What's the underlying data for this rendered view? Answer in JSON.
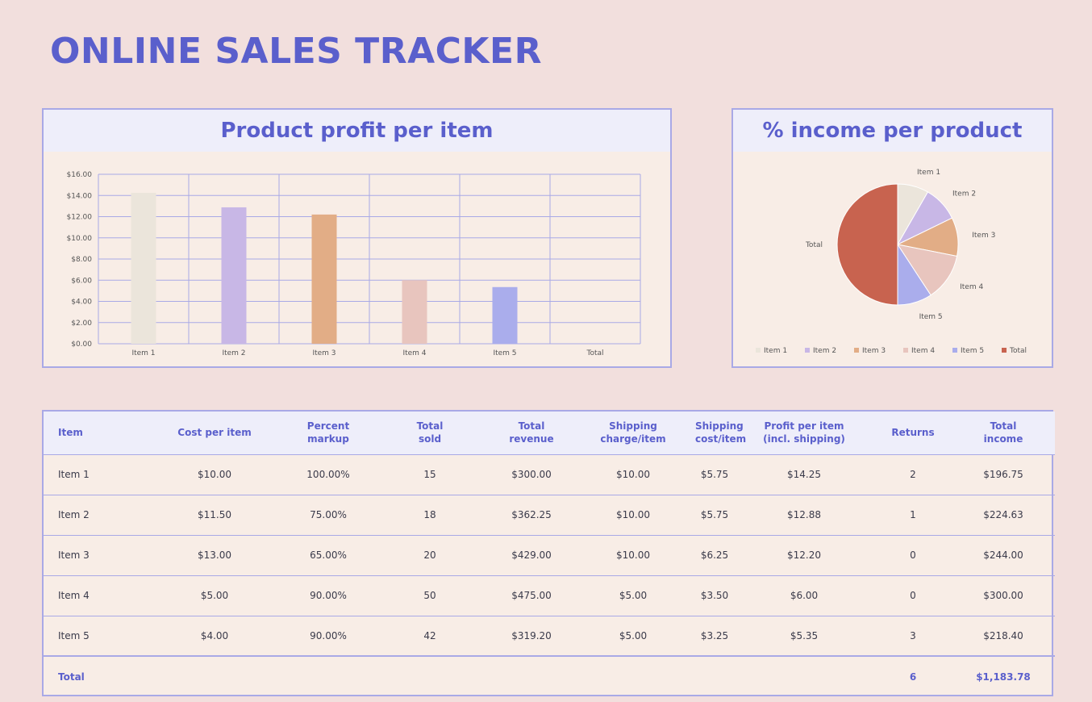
{
  "page": {
    "title": "ONLINE SALES TRACKER"
  },
  "colors": {
    "accent": "#5a5fcc",
    "border": "#a9a9e6",
    "header_bg": "#eeeefa",
    "panel_bg": "#f8ede6",
    "page_bg": "#f2dfdd",
    "item1": "#ebe5db",
    "item2": "#c8b7e6",
    "item3": "#e2ad86",
    "item4": "#e8c5be",
    "item5": "#aaadec",
    "total": "#c8634f"
  },
  "chart_data": [
    {
      "type": "bar",
      "title": "Product profit per item",
      "categories": [
        "Item 1",
        "Item 2",
        "Item 3",
        "Item 4",
        "Item 5",
        "Total"
      ],
      "values": [
        14.25,
        12.88,
        12.2,
        6.0,
        5.35,
        0
      ],
      "ylim": [
        0,
        16
      ],
      "yticks": [
        0,
        2,
        4,
        6,
        8,
        10,
        12,
        14,
        16
      ],
      "ytick_labels": [
        "$0.00",
        "$2.00",
        "$4.00",
        "$6.00",
        "$8.00",
        "$10.00",
        "$12.00",
        "$14.00",
        "$16.00"
      ],
      "grid": true,
      "xlabel": "",
      "ylabel": ""
    },
    {
      "type": "pie",
      "title": "% income per product",
      "categories": [
        "Item 1",
        "Item 2",
        "Item 3",
        "Item 4",
        "Item 5",
        "Total"
      ],
      "values": [
        196.75,
        224.63,
        244.0,
        300.0,
        218.4,
        1183.78
      ],
      "legend": "bottom"
    }
  ],
  "table": {
    "headers": [
      "Item",
      "Cost per item",
      "Percent\nmarkup",
      "Total\nsold",
      "Total\nrevenue",
      "Shipping\ncharge/item",
      "Shipping\ncost/item",
      "Profit per item\n(incl. shipping)",
      "Returns",
      "Total\nincome"
    ],
    "rows": [
      [
        "Item 1",
        "$10.00",
        "100.00%",
        "15",
        "$300.00",
        "$10.00",
        "$5.75",
        "$14.25",
        "2",
        "$196.75"
      ],
      [
        "Item 2",
        "$11.50",
        "75.00%",
        "18",
        "$362.25",
        "$10.00",
        "$5.75",
        "$12.88",
        "1",
        "$224.63"
      ],
      [
        "Item 3",
        "$13.00",
        "65.00%",
        "20",
        "$429.00",
        "$10.00",
        "$6.25",
        "$12.20",
        "0",
        "$244.00"
      ],
      [
        "Item 4",
        "$5.00",
        "90.00%",
        "50",
        "$475.00",
        "$5.00",
        "$3.50",
        "$6.00",
        "0",
        "$300.00"
      ],
      [
        "Item 5",
        "$4.00",
        "90.00%",
        "42",
        "$319.20",
        "$5.00",
        "$3.25",
        "$5.35",
        "3",
        "$218.40"
      ]
    ],
    "total_row": [
      "Total",
      "",
      "",
      "",
      "",
      "",
      "",
      "",
      "6",
      "$1,183.78"
    ]
  }
}
